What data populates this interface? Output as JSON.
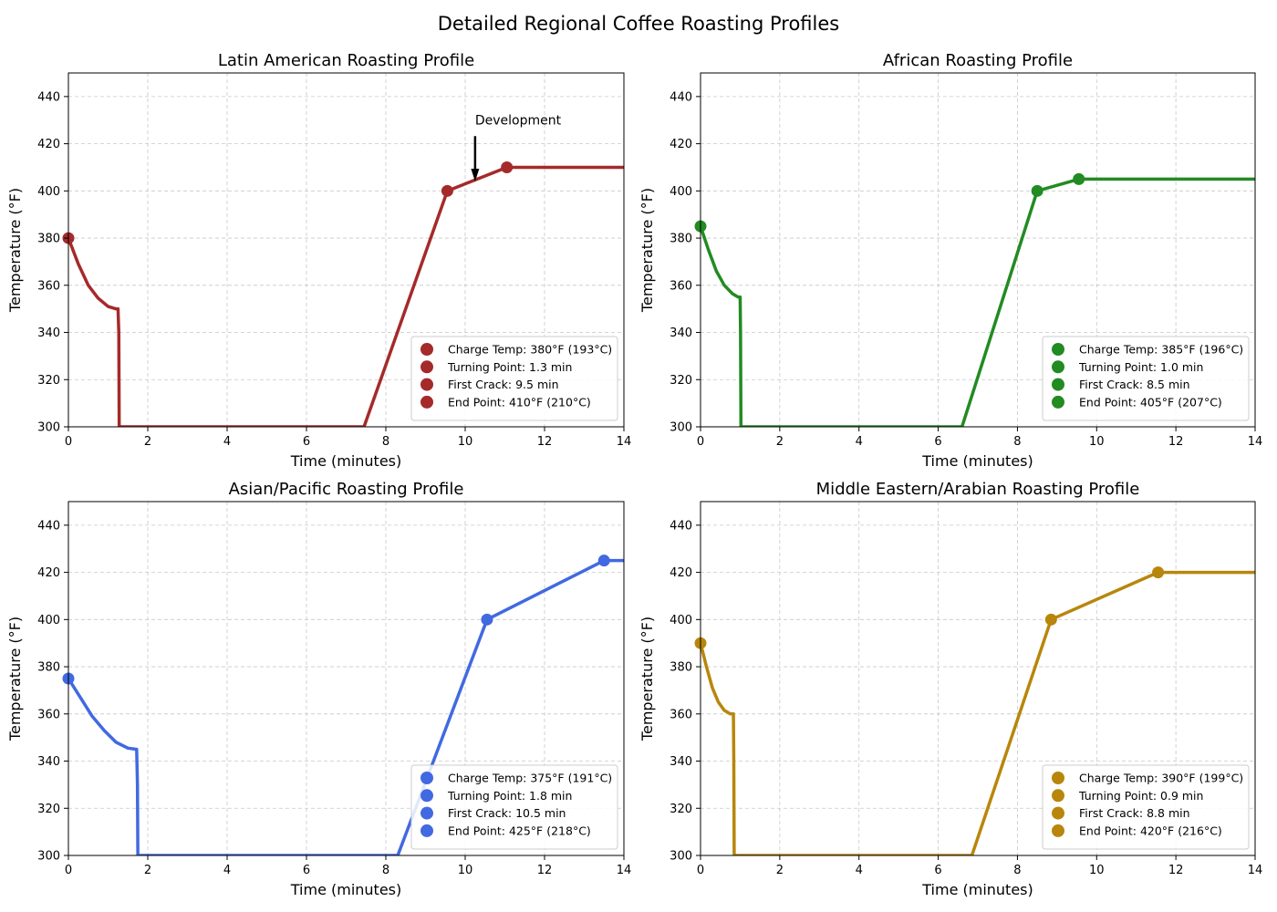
{
  "figure_title": "Detailed Regional Coffee Roasting Profiles",
  "chart_data": [
    {
      "type": "line",
      "title": "Latin American Roasting Profile",
      "xlabel": "Time (minutes)",
      "ylabel": "Temperature (°F)",
      "xlim": [
        0,
        14
      ],
      "ylim": [
        300,
        450
      ],
      "xticks": [
        0,
        2,
        4,
        6,
        8,
        10,
        12,
        14
      ],
      "yticks": [
        300,
        320,
        340,
        360,
        380,
        400,
        420,
        440
      ],
      "grid": true,
      "color": "#a52a2a",
      "curve": {
        "x": [
          0,
          0.25,
          0.5,
          0.75,
          1.0,
          1.2,
          1.25,
          1.27,
          1.28,
          7.45,
          9.55,
          11.05,
          14
        ],
        "y": [
          380,
          369,
          360,
          354.5,
          351,
          350,
          350,
          340,
          300,
          300,
          400,
          410,
          410
        ]
      },
      "markers": {
        "x": [
          0,
          9.55,
          11.05
        ],
        "y": [
          380,
          400,
          410
        ]
      },
      "legend": {
        "position": "lower right",
        "entries": [
          "Charge Temp: 380°F (193°C)",
          "Turning Point: 1.3 min",
          "First Crack: 9.5 min",
          "End Point: 410°F (210°C)"
        ]
      },
      "annotation": {
        "text": "Development",
        "xy": [
          10.25,
          404
        ],
        "text_xy": [
          10.25,
          424
        ]
      }
    },
    {
      "type": "line",
      "title": "African Roasting Profile",
      "xlabel": "Time (minutes)",
      "ylabel": "Temperature (°F)",
      "xlim": [
        0,
        14
      ],
      "ylim": [
        300,
        450
      ],
      "xticks": [
        0,
        2,
        4,
        6,
        8,
        10,
        12,
        14
      ],
      "yticks": [
        300,
        320,
        340,
        360,
        380,
        400,
        420,
        440
      ],
      "grid": true,
      "color": "#228b22",
      "curve": {
        "x": [
          0,
          0.2,
          0.4,
          0.6,
          0.8,
          0.95,
          1.0,
          1.01,
          1.02,
          6.6,
          8.5,
          9.55,
          14
        ],
        "y": [
          385,
          375,
          366,
          360,
          356.5,
          355,
          355,
          340,
          300,
          300,
          400,
          405,
          405
        ]
      },
      "markers": {
        "x": [
          0,
          8.5,
          9.55
        ],
        "y": [
          385,
          400,
          405
        ]
      },
      "legend": {
        "position": "lower right",
        "entries": [
          "Charge Temp: 385°F (196°C)",
          "Turning Point: 1.0 min",
          "First Crack: 8.5 min",
          "End Point: 405°F (207°C)"
        ]
      }
    },
    {
      "type": "line",
      "title": "Asian/Pacific Roasting Profile",
      "xlabel": "Time (minutes)",
      "ylabel": "Temperature (°F)",
      "xlim": [
        0,
        14
      ],
      "ylim": [
        300,
        450
      ],
      "xticks": [
        0,
        2,
        4,
        6,
        8,
        10,
        12,
        14
      ],
      "yticks": [
        300,
        320,
        340,
        360,
        380,
        400,
        420,
        440
      ],
      "grid": true,
      "color": "#4169e1",
      "curve": {
        "x": [
          0,
          0.3,
          0.6,
          0.9,
          1.2,
          1.5,
          1.72,
          1.74,
          1.75,
          8.3,
          10.55,
          13.5,
          14
        ],
        "y": [
          375,
          367,
          359,
          353,
          348,
          345.5,
          345,
          330,
          300,
          300,
          400,
          425,
          425
        ]
      },
      "markers": {
        "x": [
          0,
          10.55,
          13.5
        ],
        "y": [
          375,
          400,
          425
        ]
      },
      "legend": {
        "position": "lower right",
        "entries": [
          "Charge Temp: 375°F (191°C)",
          "Turning Point: 1.8 min",
          "First Crack: 10.5 min",
          "End Point: 425°F (218°C)"
        ]
      }
    },
    {
      "type": "line",
      "title": "Middle Eastern/Arabian Roasting Profile",
      "xlabel": "Time (minutes)",
      "ylabel": "Temperature (°F)",
      "xlim": [
        0,
        14
      ],
      "ylim": [
        300,
        450
      ],
      "xticks": [
        0,
        2,
        4,
        6,
        8,
        10,
        12,
        14
      ],
      "yticks": [
        300,
        320,
        340,
        360,
        380,
        400,
        420,
        440
      ],
      "grid": true,
      "color": "#b8860b",
      "curve": {
        "x": [
          0,
          0.15,
          0.3,
          0.45,
          0.6,
          0.75,
          0.83,
          0.84,
          0.85,
          6.85,
          8.85,
          11.55,
          14
        ],
        "y": [
          390,
          380,
          371,
          365,
          361.5,
          360,
          360,
          340,
          300,
          300,
          400,
          420,
          420
        ]
      },
      "markers": {
        "x": [
          0,
          8.85,
          11.55
        ],
        "y": [
          390,
          400,
          420
        ]
      },
      "legend": {
        "position": "lower right",
        "entries": [
          "Charge Temp: 390°F (199°C)",
          "Turning Point: 0.9 min",
          "First Crack: 8.8 min",
          "End Point: 420°F (216°C)"
        ]
      }
    }
  ]
}
